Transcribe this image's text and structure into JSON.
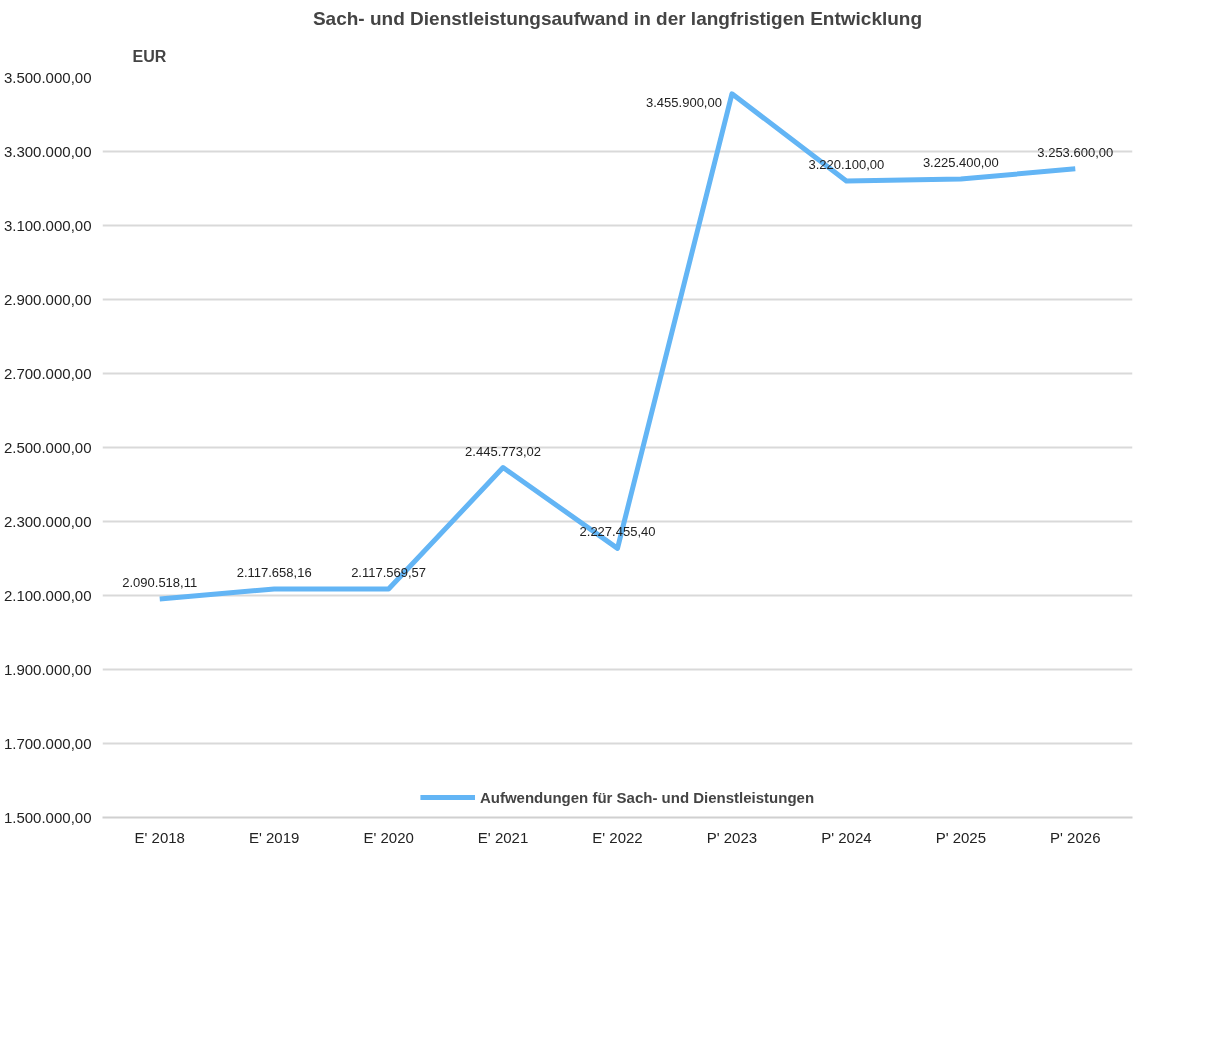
{
  "chart_data": {
    "type": "line",
    "title": "Sach- und Dienstleistungsaufwand in der langfristigen Entwicklung",
    "ylabel": "EUR",
    "categories": [
      "E' 2018",
      "E' 2019",
      "E' 2020",
      "E' 2021",
      "E' 2022",
      "P' 2023",
      "P' 2024",
      "P' 2025",
      "P' 2026"
    ],
    "series": [
      {
        "name": "Aufwendungen für Sach- und Dienstleistungen",
        "color": "#63b5f5",
        "values": [
          2090518.11,
          2117658.16,
          2117569.57,
          2445773.02,
          2227455.4,
          3455900,
          3220100,
          3225400,
          3253600
        ],
        "value_labels": [
          "2.090.518,11",
          "2.117.658,16",
          "2.117.569,57",
          "2.445.773,02",
          "2.227.455,40",
          "3.455.900,00",
          "3.220.100,00",
          "3.225.400,00",
          "3.253.600,00"
        ]
      }
    ],
    "ylim": [
      1500000,
      3500000
    ],
    "yticks": [
      {
        "value": 1500000,
        "label": "1.500.000,00"
      },
      {
        "value": 1700000,
        "label": "1.700.000,00"
      },
      {
        "value": 1900000,
        "label": "1.900.000,00"
      },
      {
        "value": 2100000,
        "label": "2.100.000,00"
      },
      {
        "value": 2300000,
        "label": "2.300.000,00"
      },
      {
        "value": 2500000,
        "label": "2.500.000,00"
      },
      {
        "value": 2700000,
        "label": "2.700.000,00"
      },
      {
        "value": 2900000,
        "label": "2.900.000,00"
      },
      {
        "value": 3100000,
        "label": "3.100.000,00"
      },
      {
        "value": 3300000,
        "label": "3.300.000,00"
      },
      {
        "value": 3500000,
        "label": "3.500.000,00"
      }
    ],
    "grid": "y",
    "legend": "bottom",
    "marker": "none",
    "line_style": "solid"
  }
}
